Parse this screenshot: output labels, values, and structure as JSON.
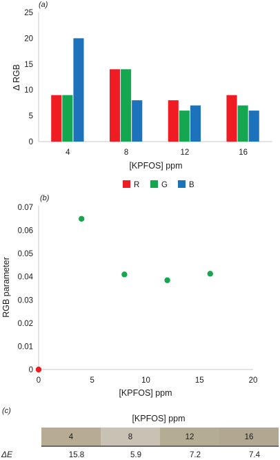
{
  "chart_data": [
    {
      "panel": "(a)",
      "type": "bar",
      "categories": [
        "4",
        "8",
        "12",
        "16"
      ],
      "series": [
        {
          "name": "R",
          "color": "#ef1c24",
          "values": [
            9,
            14,
            8,
            9
          ]
        },
        {
          "name": "G",
          "color": "#15a650",
          "values": [
            9,
            14,
            6,
            7
          ]
        },
        {
          "name": "B",
          "color": "#1c72bb",
          "values": [
            20,
            8,
            7,
            6
          ]
        }
      ],
      "xlabel": "[KPFOS] ppm",
      "ylabel": "Δ RGB",
      "ylim": [
        0,
        25
      ],
      "yticks": [
        "0",
        "5",
        "10",
        "15",
        "20",
        "25"
      ],
      "grid": false,
      "legend_position": "bottom"
    },
    {
      "panel": "(b)",
      "type": "scatter",
      "series": [
        {
          "color": "#ef1c24",
          "points": [
            [
              0,
              0
            ]
          ]
        },
        {
          "color": "#15a650",
          "points": [
            [
              4,
              0.065
            ],
            [
              8,
              0.041
            ],
            [
              12,
              0.0385
            ],
            [
              16,
              0.0413
            ]
          ]
        }
      ],
      "xlabel": "[KPFOS] ppm",
      "ylabel": "RGB parameter",
      "xlim": [
        0,
        20
      ],
      "ylim": [
        0,
        0.07
      ],
      "xticks": [
        "0",
        "5",
        "10",
        "15",
        "20"
      ],
      "yticks": [
        "0",
        "0.01",
        "0.02",
        "0.03",
        "0.04",
        "0.05",
        "0.06",
        "0.07"
      ],
      "grid": false
    },
    {
      "panel": "(c)",
      "type": "table",
      "header": "[KPFOS] ppm",
      "columns": [
        "4",
        "8",
        "12",
        "16"
      ],
      "swatch_colors": [
        "#b7ab93",
        "#c8c2b4",
        "#b5ac94",
        "#b2a891"
      ],
      "row_label": "ΔE",
      "values": [
        "15.8",
        "5.9",
        "7.2",
        "7.4"
      ]
    }
  ]
}
